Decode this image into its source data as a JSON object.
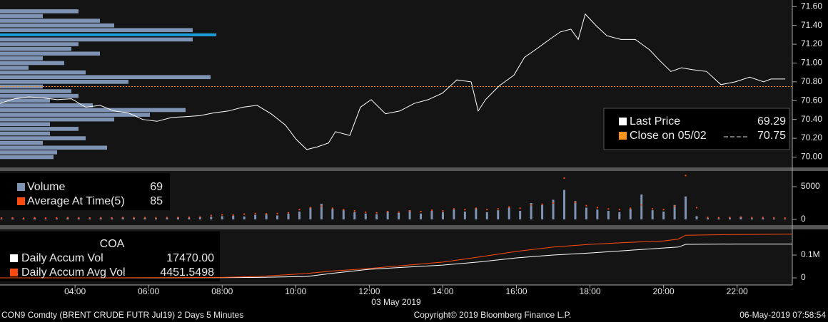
{
  "chart_data": [
    {
      "type": "line",
      "xlim": [
        1.96,
        23.5
      ],
      "ylim": [
        69.89,
        71.67
      ],
      "yticks": [
        {
          "value": 70,
          "label": "70.00"
        },
        {
          "value": 70.2,
          "label": "70.20"
        },
        {
          "value": 70.4,
          "label": "70.40"
        },
        {
          "value": 70.6,
          "label": "70.60"
        },
        {
          "value": 70.8,
          "label": "70.80"
        },
        {
          "value": 71,
          "label": "71.00"
        },
        {
          "value": 71.2,
          "label": "71.20"
        },
        {
          "value": 71.4,
          "label": "71.40"
        },
        {
          "value": 71.6,
          "label": "71.60"
        }
      ],
      "series": [
        {
          "name": "Last Price",
          "color": "#ffffff",
          "last": 69.29,
          "x": [
            1.96,
            2.35,
            2.74,
            3.12,
            3.51,
            3.9,
            4.29,
            4.68,
            5.06,
            5.45,
            5.84,
            6.23,
            6.62,
            7.01,
            7.39,
            7.78,
            8.17,
            8.56,
            8.95,
            9.33,
            9.72,
            10.01,
            10.3,
            10.6,
            10.89,
            11.08,
            11.47,
            11.76,
            12.05,
            12.44,
            12.83,
            13.22,
            13.6,
            13.99,
            14.38,
            14.77,
            14.96,
            15.16,
            15.54,
            15.93,
            16.22,
            16.51,
            16.9,
            17.19,
            17.48,
            17.68,
            17.87,
            18.16,
            18.46,
            18.84,
            19.23,
            19.62,
            19.91,
            20.2,
            20.49,
            20.78,
            21.17,
            21.56,
            21.95,
            22.34,
            22.72,
            22.92,
            23.31
          ],
          "values": [
            70.57,
            70.62,
            70.64,
            70.63,
            70.61,
            70.62,
            70.53,
            70.55,
            70.49,
            70.47,
            70.4,
            70.38,
            70.42,
            70.43,
            70.44,
            70.47,
            70.49,
            70.53,
            70.55,
            70.46,
            70.34,
            70.19,
            70.08,
            70.11,
            70.15,
            70.27,
            70.23,
            70.53,
            70.61,
            70.46,
            70.49,
            70.57,
            70.61,
            70.68,
            70.82,
            70.8,
            70.49,
            70.61,
            70.76,
            70.87,
            71.06,
            71.14,
            71.25,
            71.33,
            71.36,
            71.25,
            71.52,
            71.4,
            71.29,
            71.25,
            71.25,
            71.14,
            71.02,
            70.91,
            70.95,
            70.93,
            70.91,
            70.77,
            70.8,
            70.85,
            70.8,
            70.83,
            70.83
          ]
        },
        {
          "name": "Close on 05/02",
          "color": "#f7931e",
          "value": 70.75
        }
      ],
      "profile": {
        "color": "#7f94b5",
        "highlight_color": "#19a0dc",
        "highlight_index": 5,
        "prices": [
          71.55,
          71.5,
          71.45,
          71.4,
          71.35,
          71.3,
          71.25,
          71.2,
          71.15,
          71.1,
          71.05,
          71.0,
          70.95,
          70.9,
          70.85,
          70.8,
          70.75,
          70.7,
          70.65,
          70.6,
          70.55,
          70.5,
          70.45,
          70.4,
          70.35,
          70.3,
          70.25,
          70.2,
          70.15,
          70.1,
          70.05,
          70.0
        ],
        "values": [
          110,
          60,
          140,
          160,
          270,
          303,
          270,
          110,
          100,
          140,
          60,
          90,
          40,
          120,
          295,
          180,
          60,
          100,
          110,
          70,
          130,
          260,
          210,
          160,
          70,
          110,
          70,
          120,
          60,
          150,
          80,
          75
        ]
      }
    },
    {
      "type": "bar",
      "xlim": [
        1.96,
        23.5
      ],
      "ylim": [
        -870,
        7390
      ],
      "yticks": [
        0,
        5000
      ],
      "x": [
        2.0,
        2.3,
        2.6,
        2.9,
        3.2,
        3.5,
        3.8,
        4.1,
        4.4,
        4.7,
        5.0,
        5.3,
        5.6,
        5.9,
        6.2,
        6.5,
        6.8,
        7.1,
        7.4,
        7.7,
        8.0,
        8.3,
        8.6,
        8.9,
        9.2,
        9.5,
        9.8,
        10.1,
        10.4,
        10.7,
        11.0,
        11.3,
        11.6,
        11.9,
        12.2,
        12.5,
        12.8,
        13.1,
        13.4,
        13.7,
        14.0,
        14.3,
        14.6,
        14.9,
        15.2,
        15.5,
        15.8,
        16.1,
        16.4,
        16.7,
        17.0,
        17.3,
        17.6,
        17.9,
        18.2,
        18.5,
        18.8,
        19.1,
        19.4,
        19.7,
        20.0,
        20.3,
        20.6,
        20.9,
        21.2,
        21.5,
        21.8,
        22.1,
        22.4,
        22.7,
        23.0,
        23.3
      ],
      "series": [
        {
          "name": "Volume",
          "color": "#7f94b5",
          "last": 69,
          "values": [
            100,
            150,
            120,
            200,
            100,
            150,
            250,
            180,
            120,
            200,
            150,
            300,
            200,
            250,
            180,
            220,
            300,
            250,
            350,
            400,
            500,
            600,
            450,
            700,
            800,
            600,
            900,
            1200,
            1800,
            2400,
            1600,
            1400,
            1100,
            900,
            800,
            1200,
            1000,
            1400,
            900,
            1300,
            1100,
            1500,
            1200,
            1700,
            1100,
            1400,
            1800,
            1300,
            2500,
            2200,
            3000,
            4500,
            2800,
            1800,
            1500,
            1300,
            1100,
            1600,
            3800,
            1400,
            1200,
            2200,
            3500,
            500,
            200,
            150,
            250,
            400,
            180,
            200,
            150,
            100
          ]
        },
        {
          "name": "Average At Time(5)",
          "color": "#ff4a0f",
          "last": 85,
          "values": [
            200,
            220,
            180,
            250,
            200,
            230,
            260,
            240,
            220,
            250,
            230,
            280,
            260,
            270,
            250,
            280,
            300,
            320,
            350,
            600,
            700,
            650,
            800,
            900,
            850,
            900,
            1000,
            1500,
            1800,
            2000,
            1700,
            1500,
            1300,
            1100,
            1000,
            1200,
            1100,
            1300,
            1200,
            1400,
            1300,
            1600,
            1500,
            1700,
            1500,
            1600,
            1900,
            1700,
            2200,
            2300,
            2500,
            6300,
            2600,
            2100,
            1800,
            1600,
            1500,
            1700,
            2200,
            1600,
            1500,
            2000,
            6700,
            1800,
            300,
            250,
            300,
            350,
            280,
            300,
            250,
            200
          ]
        }
      ]
    },
    {
      "type": "line",
      "title": "COA",
      "xlim": [
        1.96,
        23.5
      ],
      "ylim": [
        -31250,
        212500
      ],
      "yticks": [
        0,
        {
          "value": 100000,
          "label": "0.1M"
        }
      ],
      "xticks": [
        {
          "value": 4,
          "label": "04:00"
        },
        {
          "value": 6,
          "label": "06:00"
        },
        {
          "value": 8,
          "label": "08:00"
        },
        {
          "value": 10,
          "label": "10:00"
        },
        {
          "value": 12,
          "label": "12:00"
        },
        {
          "value": 14,
          "label": "14:00"
        },
        {
          "value": 16,
          "label": "16:00"
        },
        {
          "value": 18,
          "label": "18:00"
        },
        {
          "value": 20,
          "label": "20:00"
        },
        {
          "value": 22,
          "label": "22:00"
        }
      ],
      "date_label": "03 May 2019",
      "x": [
        1.96,
        4,
        6,
        8,
        9,
        10.3,
        11,
        12,
        13,
        14,
        15,
        16,
        17,
        18,
        19,
        20,
        20.4,
        20.6,
        22,
        23.5
      ],
      "series": [
        {
          "name": "Daily Accum Vol",
          "color": "#ffffff",
          "last": 17470,
          "last_label": "17470.00",
          "values": [
            0,
            0,
            0,
            1000,
            2000,
            6000,
            20000,
            37500,
            47000,
            56000,
            70000,
            87500,
            100000,
            109000,
            120000,
            131000,
            135000,
            147000,
            148000,
            148000
          ]
        },
        {
          "name": "Daily Accum Avg Vol",
          "color": "#ff4a0f",
          "last": 4451.5498,
          "values": [
            0,
            0,
            500,
            2000,
            6000,
            19000,
            30000,
            41000,
            55000,
            69000,
            92000,
            116000,
            135000,
            147000,
            155000,
            162000,
            170000,
            187000,
            190000,
            192000
          ]
        }
      ]
    }
  ],
  "footer": {
    "left": "CON9 Comdty (BRENT CRUDE FUTR  Jul19) 2 Days 5 Minutes",
    "center": "Copyright© 2019 Bloomberg Finance L.P.",
    "right": "06-May-2019 07:58:54"
  }
}
